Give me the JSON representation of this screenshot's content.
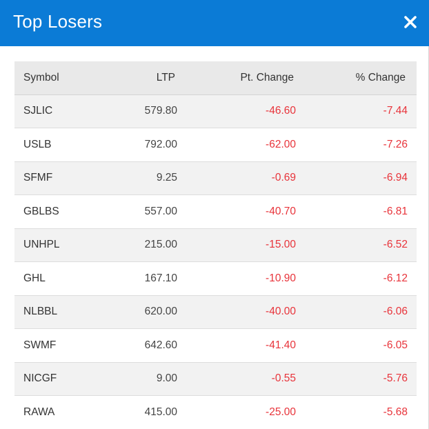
{
  "modal": {
    "title": "Top Losers",
    "close_icon": "close-icon",
    "header_color": "#0b7bd6"
  },
  "table": {
    "headers": {
      "symbol": "Symbol",
      "ltp": "LTP",
      "pt_change": "Pt. Change",
      "pct_change": "% Change"
    },
    "negative_color": "#e8333a",
    "rows": [
      {
        "symbol": "SJLIC",
        "ltp": "579.80",
        "pt_change": "-46.60",
        "pct_change": "-7.44"
      },
      {
        "symbol": "USLB",
        "ltp": "792.00",
        "pt_change": "-62.00",
        "pct_change": "-7.26"
      },
      {
        "symbol": "SFMF",
        "ltp": "9.25",
        "pt_change": "-0.69",
        "pct_change": "-6.94"
      },
      {
        "symbol": "GBLBS",
        "ltp": "557.00",
        "pt_change": "-40.70",
        "pct_change": "-6.81"
      },
      {
        "symbol": "UNHPL",
        "ltp": "215.00",
        "pt_change": "-15.00",
        "pct_change": "-6.52"
      },
      {
        "symbol": "GHL",
        "ltp": "167.10",
        "pt_change": "-10.90",
        "pct_change": "-6.12"
      },
      {
        "symbol": "NLBBL",
        "ltp": "620.00",
        "pt_change": "-40.00",
        "pct_change": "-6.06"
      },
      {
        "symbol": "SWMF",
        "ltp": "642.60",
        "pt_change": "-41.40",
        "pct_change": "-6.05"
      },
      {
        "symbol": "NICGF",
        "ltp": "9.00",
        "pt_change": "-0.55",
        "pct_change": "-5.76"
      },
      {
        "symbol": "RAWA",
        "ltp": "415.00",
        "pt_change": "-25.00",
        "pct_change": "-5.68"
      }
    ]
  }
}
